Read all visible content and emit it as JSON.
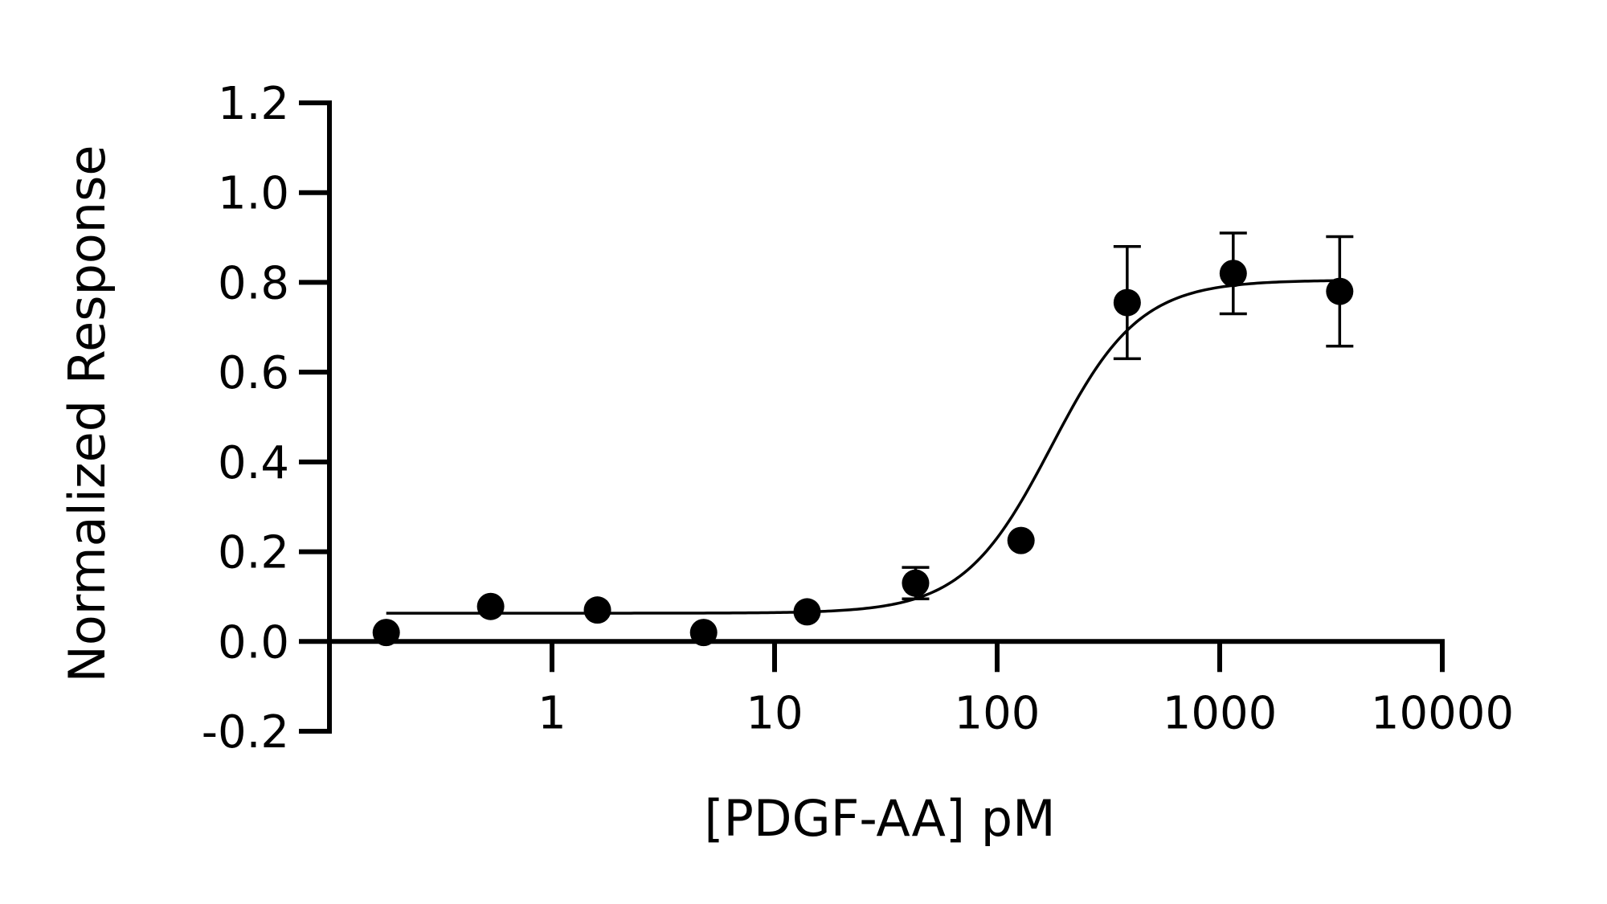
{
  "chart_data": {
    "type": "scatter",
    "xlabel": "[PDGF-AA] pM",
    "ylabel": "Normalized Response",
    "xscale": "log",
    "xlim": [
      0.1,
      10000
    ],
    "ylim": [
      -0.2,
      1.2
    ],
    "xticks": [
      1,
      10,
      100,
      1000,
      10000
    ],
    "xtick_labels": [
      "1",
      "10",
      "100",
      "1000",
      "10000"
    ],
    "yticks": [
      -0.2,
      0.0,
      0.2,
      0.4,
      0.6,
      0.8,
      1.0,
      1.2
    ],
    "ytick_labels": [
      "-0.2",
      "0.0",
      "0.2",
      "0.4",
      "0.6",
      "0.8",
      "1.0",
      "1.2"
    ],
    "grid": false,
    "legend": "none",
    "colors": {
      "marker": "#000000",
      "line": "#000000"
    },
    "series": [
      {
        "x": [
          0.18,
          0.53,
          1.6,
          4.8,
          14,
          43,
          128,
          384,
          1150,
          3460
        ],
        "y": [
          0.02,
          0.078,
          0.07,
          0.02,
          0.066,
          0.13,
          0.225,
          0.755,
          0.82,
          0.78
        ],
        "error": [
          0,
          0,
          0,
          0,
          0,
          0.035,
          0,
          0.125,
          0.09,
          0.122
        ]
      }
    ],
    "fit": {
      "model": "four-parameter logistic",
      "bottom": 0.063,
      "top": 0.805,
      "ec50": 175,
      "hill": 2.2,
      "x_range": [
        0.18,
        3460
      ]
    }
  }
}
